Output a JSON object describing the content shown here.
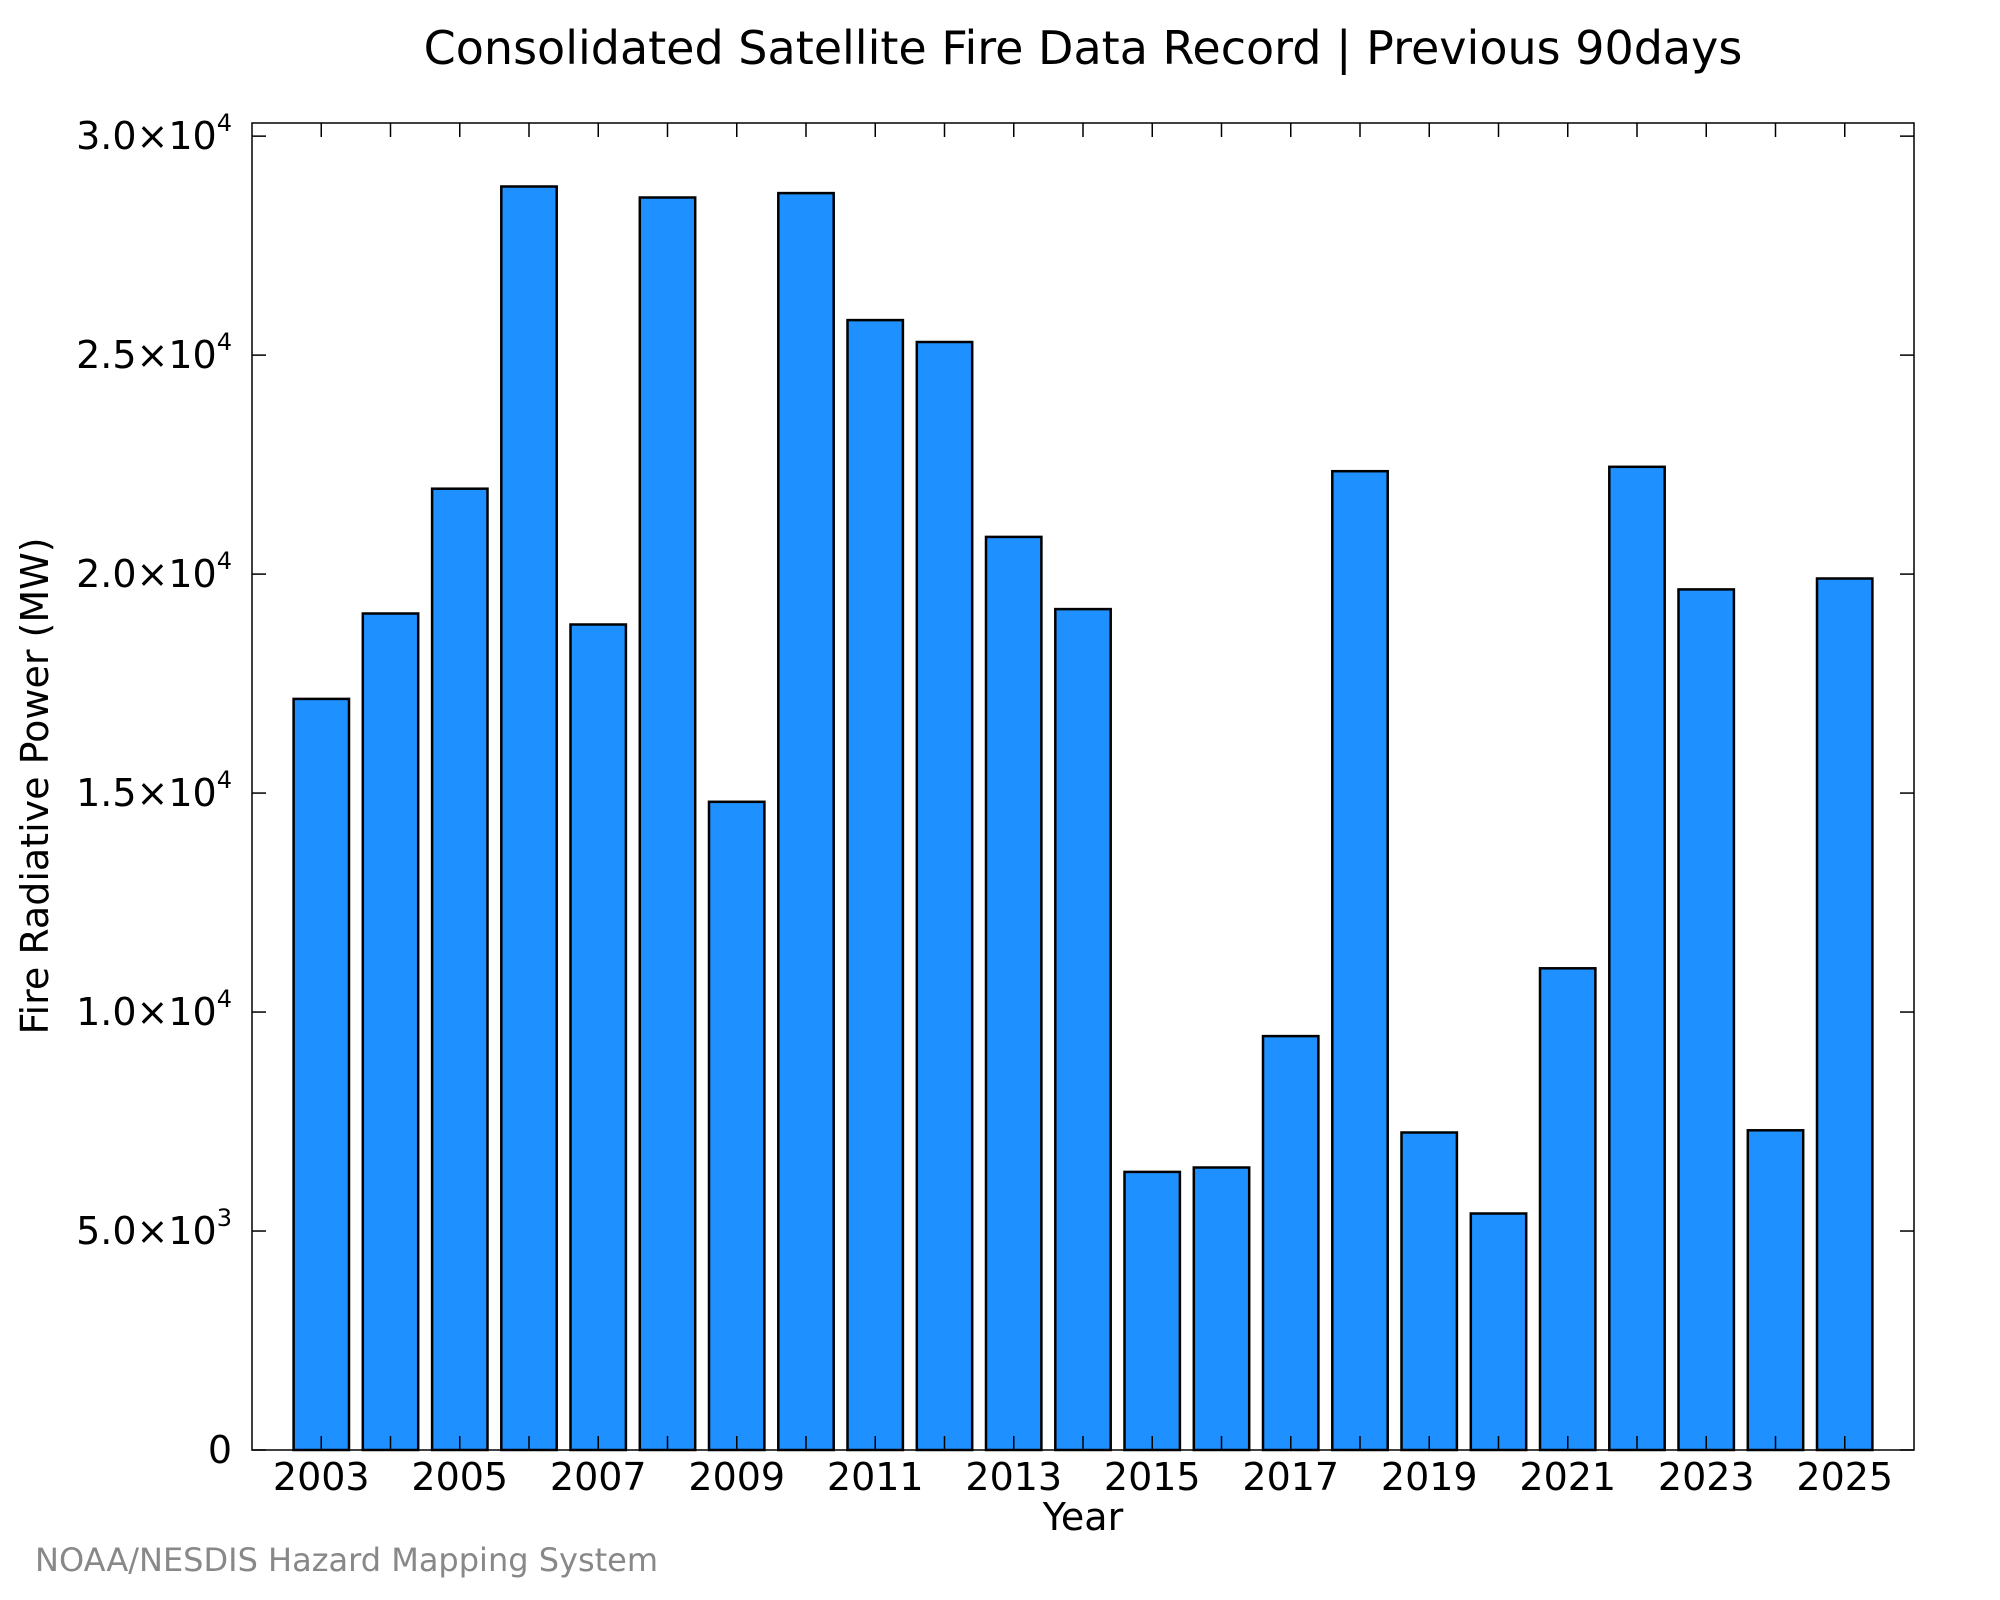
{
  "chart_data": {
    "type": "bar",
    "title": "Consolidated Satellite Fire Data Record | Previous 90days",
    "xlabel": "Year",
    "ylabel": "Fire Radiative Power (MW)",
    "categories": [
      "2003",
      "2004",
      "2005",
      "2006",
      "2007",
      "2008",
      "2009",
      "2010",
      "2011",
      "2012",
      "2013",
      "2014",
      "2015",
      "2016",
      "2017",
      "2018",
      "2019",
      "2020",
      "2021",
      "2022",
      "2023",
      "2024",
      "2025"
    ],
    "values": [
      17150,
      19100,
      21950,
      28850,
      18850,
      28600,
      14800,
      28700,
      25800,
      25300,
      20850,
      19200,
      6350,
      6450,
      9450,
      22350,
      7250,
      5400,
      11000,
      22450,
      19650,
      7300,
      19900
    ],
    "ylim": [
      0,
      30300
    ],
    "xlim": [
      2002,
      2026
    ],
    "x_tick_labels": [
      "2003",
      "2005",
      "2007",
      "2009",
      "2011",
      "2013",
      "2015",
      "2017",
      "2019",
      "2021",
      "2023",
      "2025"
    ],
    "y_ticks": [
      {
        "value": 0,
        "mantissa": "0",
        "exponent": ""
      },
      {
        "value": 5000,
        "mantissa": "5.0×10",
        "exponent": "3"
      },
      {
        "value": 10000,
        "mantissa": "1.0×10",
        "exponent": "4"
      },
      {
        "value": 15000,
        "mantissa": "1.5×10",
        "exponent": "4"
      },
      {
        "value": 20000,
        "mantissa": "2.0×10",
        "exponent": "4"
      },
      {
        "value": 25000,
        "mantissa": "2.5×10",
        "exponent": "4"
      },
      {
        "value": 30000,
        "mantissa": "3.0×10",
        "exponent": "4"
      }
    ],
    "bar_color": "#1e90ff",
    "bar_edge_color": "#000000",
    "grid": false
  },
  "credit": "NOAA/NESDIS Hazard Mapping System"
}
